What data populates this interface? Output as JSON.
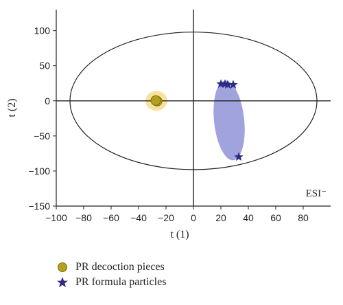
{
  "chart_data": {
    "type": "scatter",
    "title": "",
    "xlabel": "t (1)",
    "ylabel": "t (2)",
    "xlim": [
      -100,
      100
    ],
    "ylim": [
      -150,
      130
    ],
    "xticks": [
      -100,
      -80,
      -60,
      -40,
      -20,
      0,
      20,
      40,
      60,
      80
    ],
    "yticks": [
      100,
      50,
      0,
      -50,
      -100,
      -150
    ],
    "annotation": "ESI⁻",
    "hotelling_ellipse": {
      "cx": 0,
      "cy": 0,
      "rx": 90,
      "ry": 98
    },
    "series": [
      {
        "name": "PR decoction pieces",
        "marker": "circle",
        "color": "#b5a01e",
        "region_color": "#f4dc8c",
        "region": {
          "cx": -27,
          "cy": 0,
          "rx": 8,
          "ry": 14,
          "angle": 0
        },
        "points": [
          [
            -27,
            0
          ],
          [
            -26.5,
            -0.5
          ],
          [
            -27.5,
            0.5
          ]
        ]
      },
      {
        "name": "PR formula particles",
        "marker": "star",
        "color": "#2e2a85",
        "region_color": "#8f93d8",
        "region": {
          "cx": 26,
          "cy": -28,
          "rx": 11,
          "ry": 57,
          "angle": -6
        },
        "points": [
          [
            20,
            24
          ],
          [
            23,
            24
          ],
          [
            25,
            23
          ],
          [
            29,
            23
          ],
          [
            33,
            -80
          ]
        ]
      }
    ]
  }
}
